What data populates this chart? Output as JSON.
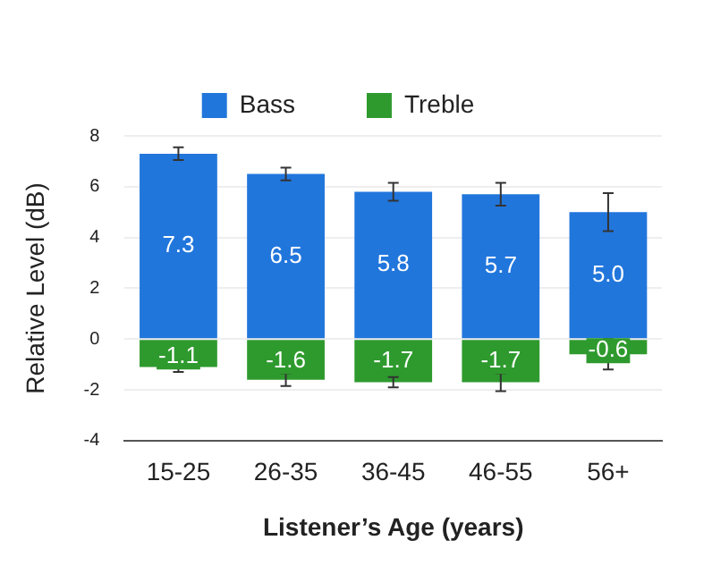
{
  "chart_data": {
    "type": "bar",
    "stacked": true,
    "xlabel": "Listener’s Age (years)",
    "ylabel": "Relative Level (dB)",
    "categories": [
      "15-25",
      "26-35",
      "36-45",
      "46-55",
      "56+"
    ],
    "series": [
      {
        "name": "Bass",
        "color": "#2176dc",
        "values": [
          7.3,
          6.5,
          5.8,
          5.7,
          5.0
        ],
        "value_labels": [
          "7.3",
          "6.5",
          "5.8",
          "5.7",
          "5.0"
        ],
        "errors": [
          0.25,
          0.25,
          0.35,
          0.45,
          0.75
        ]
      },
      {
        "name": "Treble",
        "color": "#2e9a2e",
        "values": [
          -1.1,
          -1.6,
          -1.7,
          -1.7,
          -0.6
        ],
        "value_labels": [
          "-1.1",
          "-1.6",
          "-1.7",
          "-1.7",
          "-0.6"
        ],
        "errors": [
          0.2,
          0.25,
          0.2,
          0.35,
          0.6
        ]
      }
    ],
    "ylim": [
      -4,
      8
    ],
    "yticks": [
      -4,
      -2,
      0,
      2,
      4,
      6,
      8
    ],
    "grid": "y",
    "legend": "top"
  }
}
